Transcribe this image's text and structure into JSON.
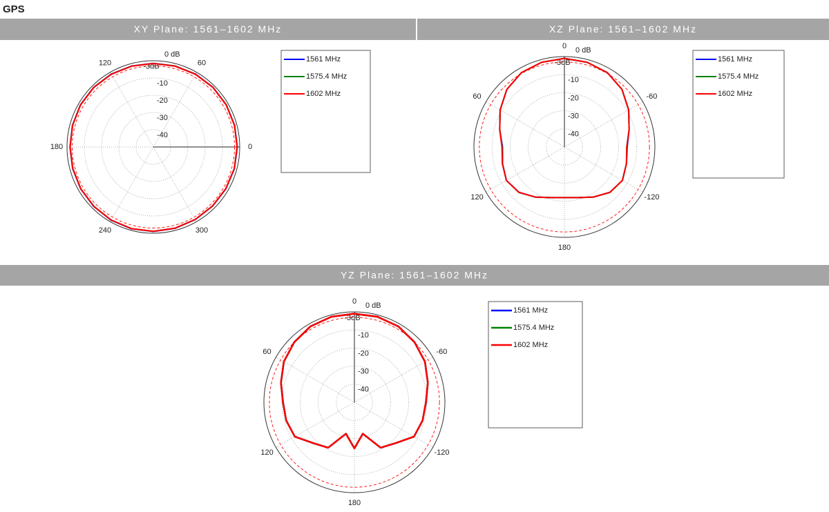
{
  "title": "GPS",
  "chart_data": [
    {
      "type": "polar",
      "title": "XY Plane: 1561–1602 MHz",
      "theta_zero": "right",
      "theta_direction": "counterclockwise",
      "theta": [
        0,
        15,
        30,
        45,
        60,
        75,
        90,
        105,
        120,
        135,
        150,
        165,
        180,
        195,
        210,
        225,
        240,
        255,
        270,
        285,
        300,
        315,
        330,
        345
      ],
      "thetaticks": [
        0,
        60,
        120,
        180,
        240,
        300
      ],
      "rlim": [
        -50,
        0
      ],
      "rticks": [
        {
          "value": 0,
          "label": "0 dB"
        },
        -10,
        -20,
        -30,
        -40
      ],
      "reference": {
        "value": -3,
        "label": "-3dB",
        "color": "#ff0000"
      },
      "series": [
        {
          "name": "1561 MHz",
          "color": "#0000ff",
          "values": [
            -1.4,
            -1.3,
            -1.2,
            -1.1,
            -1.2,
            -1.4,
            -1.5,
            -1.4,
            -1.2,
            -1.1,
            -1.2,
            -1.5,
            -1.7,
            -1.6,
            -1.4,
            -1.2,
            -1.0,
            -0.9,
            -1.0,
            -1.2,
            -1.4,
            -1.5,
            -1.5,
            -1.4
          ]
        },
        {
          "name": "1575.4 MHz",
          "color": "#008000",
          "values": [
            -1.5,
            -1.4,
            -1.2,
            -1.2,
            -1.3,
            -1.4,
            -1.6,
            -1.5,
            -1.3,
            -1.2,
            -1.3,
            -1.5,
            -1.8,
            -1.7,
            -1.5,
            -1.3,
            -1.1,
            -1.0,
            -1.1,
            -1.3,
            -1.5,
            -1.6,
            -1.6,
            -1.5
          ]
        },
        {
          "name": "1602 MHz",
          "color": "#ff0000",
          "values": [
            -1.5,
            -1.4,
            -1.3,
            -1.2,
            -1.3,
            -1.5,
            -1.6,
            -1.5,
            -1.3,
            -1.2,
            -1.3,
            -1.6,
            -1.8,
            -1.7,
            -1.5,
            -1.3,
            -1.1,
            -1.0,
            -1.1,
            -1.3,
            -1.5,
            -1.6,
            -1.6,
            -1.5
          ]
        }
      ]
    },
    {
      "type": "polar",
      "title": "XZ Plane: 1561–1602 MHz",
      "theta_zero": "top",
      "theta_direction": "counterclockwise",
      "theta": [
        0,
        15,
        30,
        45,
        60,
        75,
        90,
        105,
        120,
        135,
        150,
        165,
        180,
        195,
        210,
        225,
        240,
        255,
        270,
        285,
        300,
        315,
        330,
        345
      ],
      "thetaticks": [
        0,
        60,
        120,
        180,
        -120,
        -60
      ],
      "rlim": [
        -50,
        0
      ],
      "rticks": [
        {
          "value": 0,
          "label": "0 dB"
        },
        -10,
        -20,
        -30,
        -40
      ],
      "reference": {
        "value": -3,
        "label": "-3dB",
        "color": "#ff0000"
      },
      "series": [
        {
          "name": "1561 MHz",
          "color": "#0000ff",
          "values": [
            -1,
            -1.5,
            -2.5,
            -5,
            -9,
            -13,
            -15.8,
            -14.6,
            -13,
            -14.5,
            -18,
            -21,
            -22,
            -21,
            -18,
            -14.5,
            -13,
            -14.5,
            -15.3,
            -13,
            -9,
            -5,
            -2.5,
            -1.5
          ]
        },
        {
          "name": "1575.4 MHz",
          "color": "#008000",
          "values": [
            -1,
            -1.5,
            -2.5,
            -5,
            -9,
            -13,
            -15.6,
            -14.5,
            -13,
            -14.4,
            -18,
            -21,
            -22,
            -21,
            -18,
            -14.4,
            -13,
            -14.5,
            -15.6,
            -13,
            -9,
            -5,
            -2.5,
            -1.5
          ]
        },
        {
          "name": "1602 MHz",
          "color": "#ff0000",
          "values": [
            -1,
            -1.5,
            -2.5,
            -5,
            -9,
            -13,
            -15.5,
            -14.5,
            -13,
            -14.5,
            -18,
            -21,
            -22,
            -21,
            -18,
            -14.5,
            -13,
            -14.5,
            -15.5,
            -13,
            -9,
            -5,
            -2.5,
            -1.5
          ]
        }
      ]
    },
    {
      "type": "polar",
      "title": "YZ Plane:  1561–1602 MHz",
      "theta_zero": "top",
      "theta_direction": "counterclockwise",
      "theta": [
        0,
        15,
        30,
        45,
        60,
        75,
        90,
        105,
        120,
        135,
        150,
        165,
        180,
        195,
        210,
        225,
        240,
        255,
        270,
        285,
        300,
        315,
        330,
        345
      ],
      "thetaticks": [
        0,
        60,
        120,
        180,
        -120,
        -60
      ],
      "rlim": [
        -50,
        0
      ],
      "rticks": [
        {
          "value": 0,
          "label": "0 dB"
        },
        -10,
        -20,
        -30,
        -40
      ],
      "reference": {
        "value": -3,
        "label": "-3dB",
        "color": "#ff0000"
      },
      "series": [
        {
          "name": "1561 MHz",
          "color": "#0000ff",
          "values": [
            -1,
            -1,
            -1.5,
            -3,
            -5,
            -8,
            -10.6,
            -11,
            -12,
            -18,
            -21,
            -32,
            -24.5,
            -32,
            -21,
            -18,
            -12,
            -11,
            -10.4,
            -8,
            -5,
            -3,
            -1.5,
            -1
          ]
        },
        {
          "name": "1575.4 MHz",
          "color": "#008000",
          "values": [
            -1,
            -1,
            -1.5,
            -3,
            -5,
            -8,
            -10.5,
            -11,
            -12,
            -18,
            -21,
            -32,
            -24.5,
            -32,
            -21,
            -18,
            -12,
            -11,
            -10.5,
            -8,
            -5,
            -3,
            -1.5,
            -1
          ]
        },
        {
          "name": "1602 MHz",
          "color": "#ff0000",
          "values": [
            -1,
            -1,
            -1.5,
            -3,
            -5,
            -8,
            -10.5,
            -11,
            -12,
            -18,
            -21,
            -32,
            -24.5,
            -32,
            -21,
            -18,
            -12,
            -11,
            -10.5,
            -8,
            -5,
            -3,
            -1.5,
            -1
          ]
        }
      ]
    }
  ]
}
